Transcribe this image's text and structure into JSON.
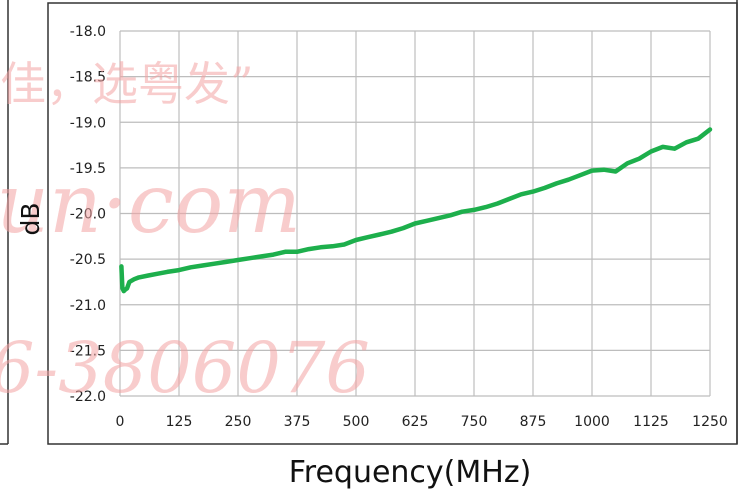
{
  "chart_data": {
    "type": "line",
    "title": "",
    "xlabel": "Frequency(MHz)",
    "ylabel": "dB",
    "xlim": [
      0,
      1250
    ],
    "ylim": [
      -22.0,
      -18.0
    ],
    "x_ticks": [
      "0",
      "125",
      "250",
      "375",
      "500",
      "625",
      "750",
      "875",
      "1000",
      "1125",
      "1250"
    ],
    "y_ticks": [
      "-18.0",
      "-18.5",
      "-19.0",
      "-19.5",
      "-20.0",
      "-20.5",
      "-21.0",
      "-21.5",
      "-22.0"
    ],
    "grid": true,
    "legend": "none",
    "series": [
      {
        "color": "#1daf4c",
        "x": [
          3,
          5,
          8,
          10,
          15,
          20,
          30,
          40,
          60,
          80,
          100,
          125,
          150,
          175,
          200,
          225,
          250,
          275,
          300,
          325,
          350,
          375,
          400,
          425,
          450,
          475,
          500,
          525,
          550,
          575,
          600,
          625,
          650,
          675,
          700,
          725,
          750,
          775,
          800,
          825,
          850,
          875,
          900,
          925,
          950,
          975,
          1000,
          1025,
          1050,
          1075,
          1100,
          1125,
          1150,
          1175,
          1200,
          1225,
          1250
        ],
        "y": [
          -20.58,
          -20.82,
          -20.85,
          -20.84,
          -20.82,
          -20.75,
          -20.72,
          -20.7,
          -20.68,
          -20.66,
          -20.64,
          -20.62,
          -20.59,
          -20.57,
          -20.55,
          -20.53,
          -20.51,
          -20.49,
          -20.47,
          -20.45,
          -20.42,
          -20.42,
          -20.39,
          -20.37,
          -20.36,
          -20.34,
          -20.29,
          -20.26,
          -20.23,
          -20.2,
          -20.16,
          -20.11,
          -20.08,
          -20.05,
          -20.02,
          -19.98,
          -19.96,
          -19.93,
          -19.89,
          -19.84,
          -19.79,
          -19.76,
          -19.72,
          -19.67,
          -19.63,
          -19.58,
          -19.53,
          -19.52,
          -19.54,
          -19.45,
          -19.4,
          -19.32,
          -19.27,
          -19.29,
          -19.22,
          -19.18,
          -19.08
        ]
      }
    ]
  },
  "watermark": {
    "line1": "佳，选粤发”",
    "line2": "lun·com",
    "line3": "6-3806076"
  }
}
